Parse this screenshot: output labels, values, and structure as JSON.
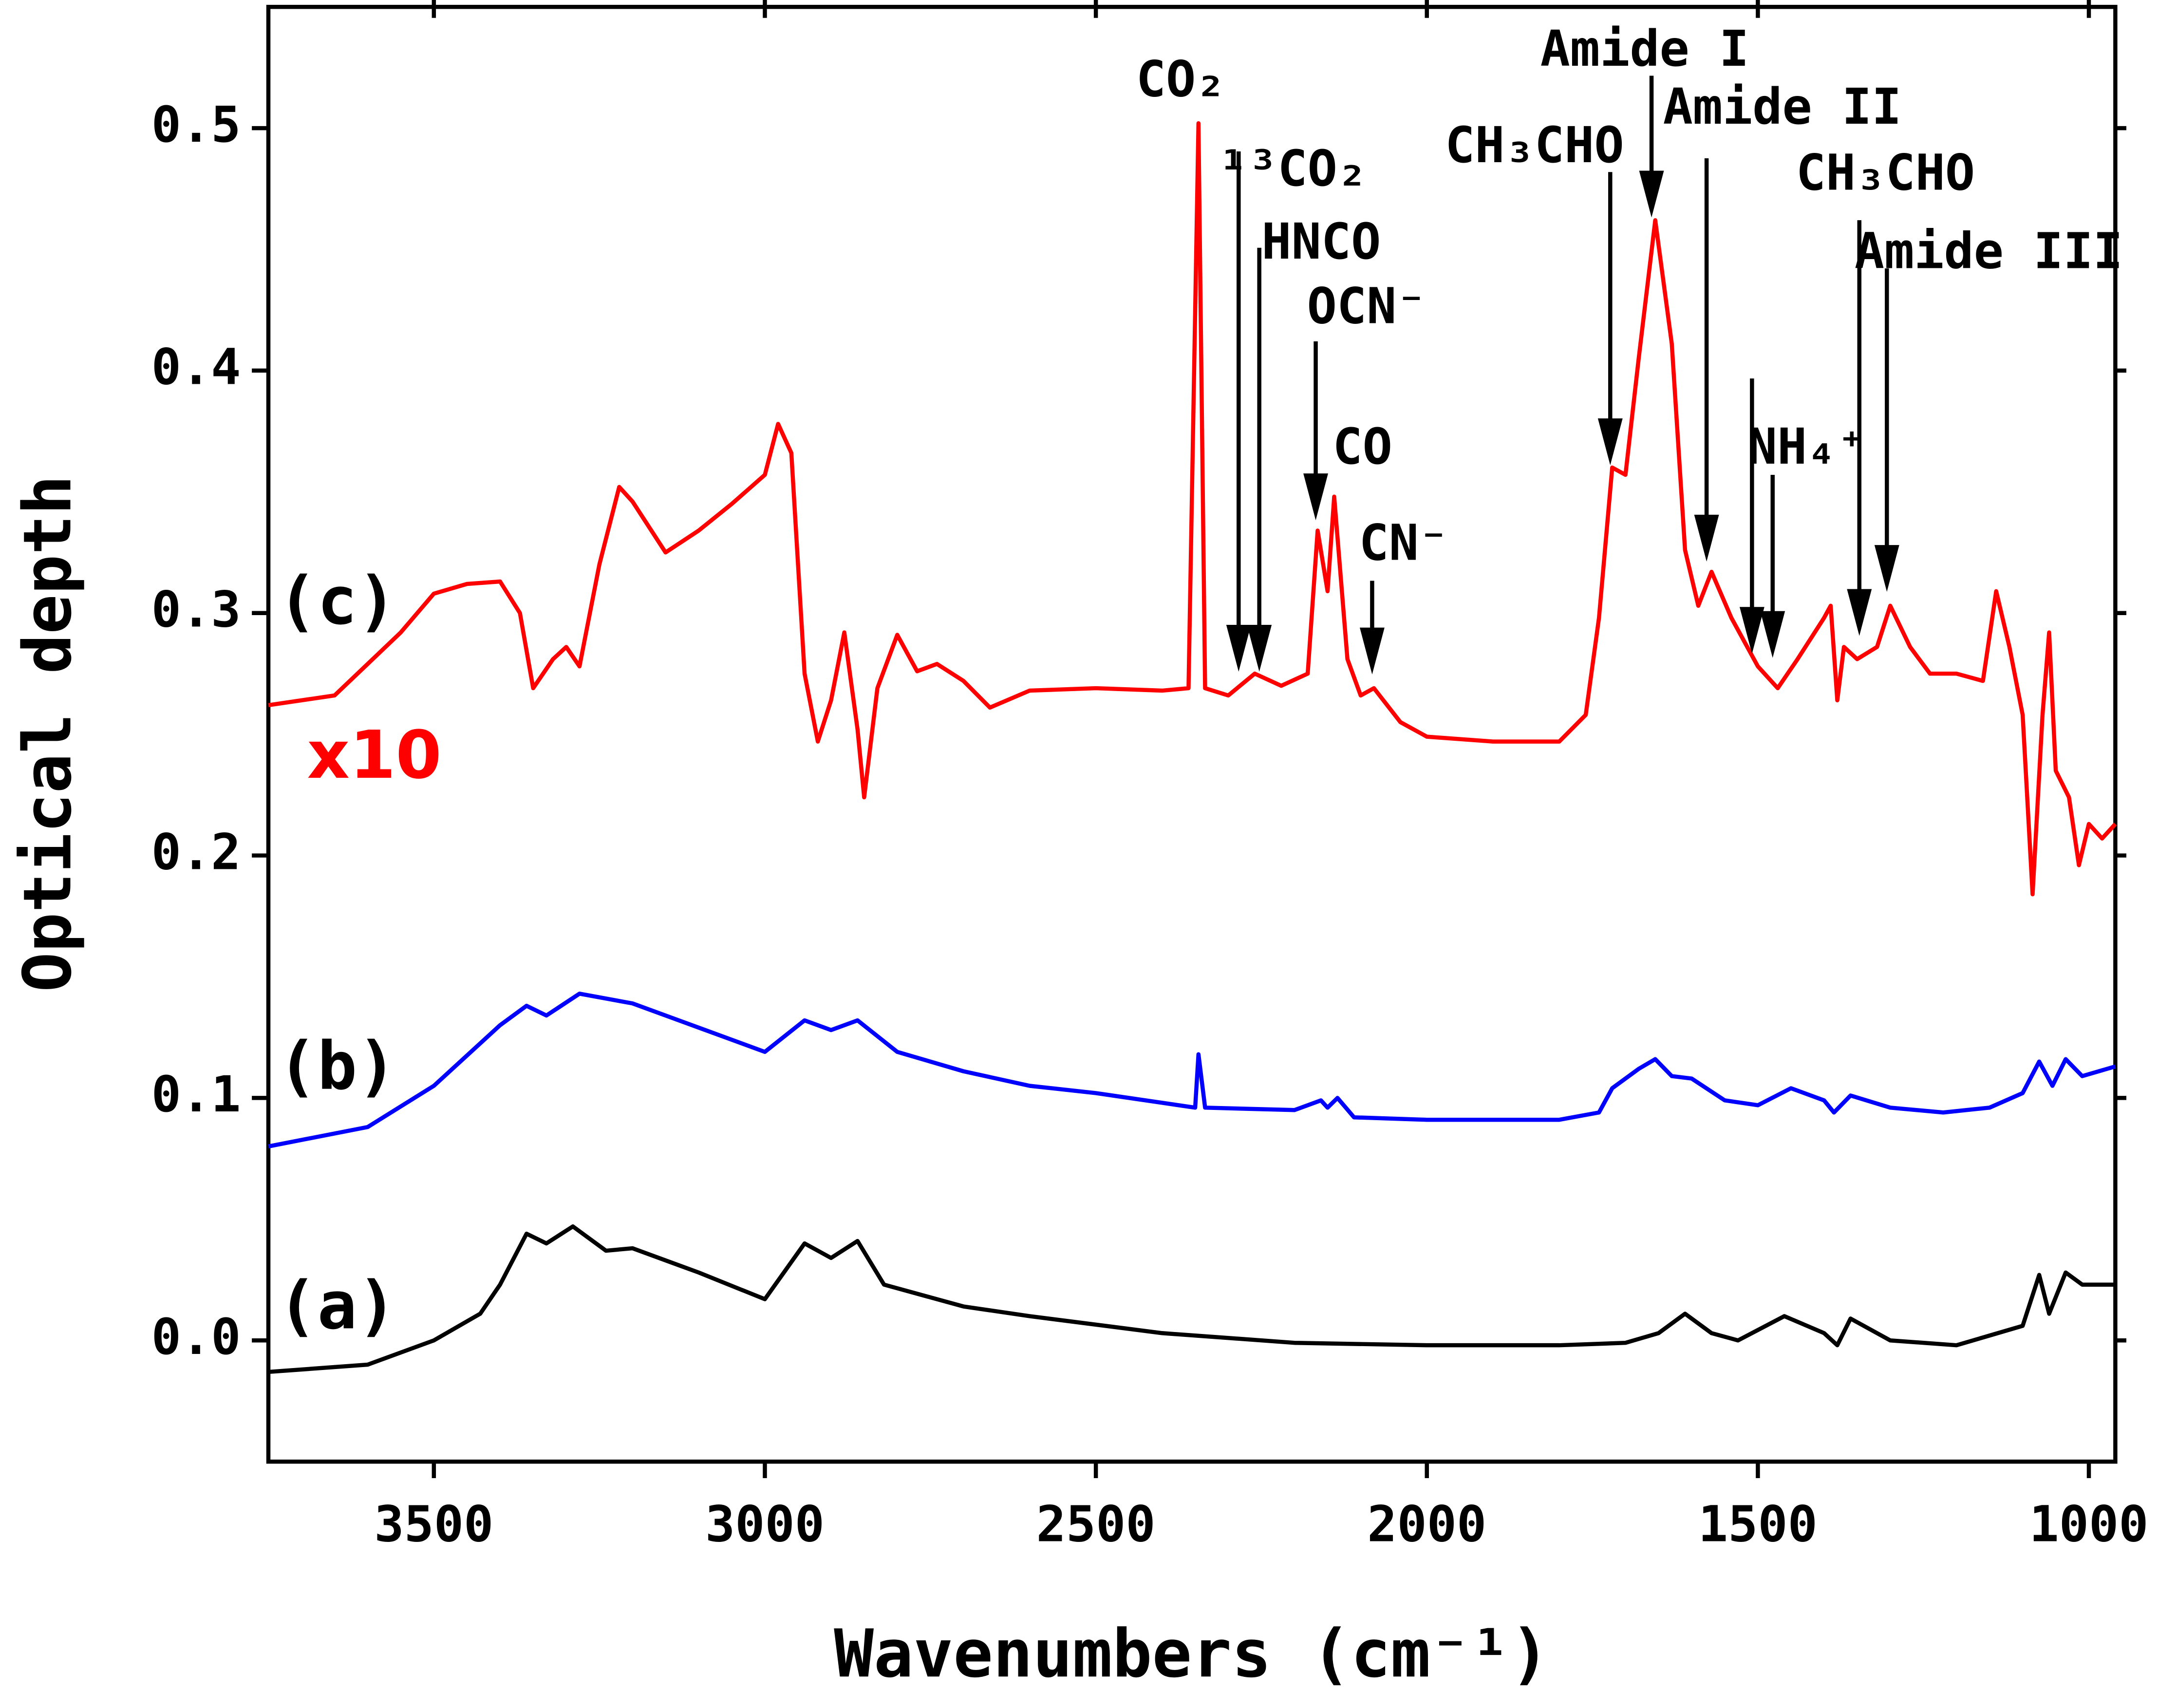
{
  "chart_data": {
    "type": "line",
    "xlabel": "Wavenumbers (cm⁻¹)",
    "ylabel": "Optical depth",
    "xlim": [
      3750,
      960
    ],
    "ylim": [
      -0.05,
      0.55
    ],
    "xticks": [
      3500,
      3000,
      2500,
      2000,
      1500,
      1000
    ],
    "yticks": [
      {
        "value": 0,
        "label": "0.0"
      },
      0.1,
      0.2,
      0.3,
      0.4,
      0.5
    ],
    "series": [
      {
        "name": "(a)",
        "color": "#000000",
        "x": [
          3750,
          3600,
          3500,
          3430,
          3400,
          3360,
          3330,
          3290,
          3240,
          3200,
          3100,
          3000,
          2940,
          2900,
          2860,
          2820,
          2700,
          2600,
          2400,
          2200,
          2000,
          1800,
          1700,
          1650,
          1610,
          1570,
          1530,
          1460,
          1400,
          1380,
          1360,
          1300,
          1200,
          1150,
          1100,
          1075,
          1060,
          1035,
          1010,
          960
        ],
        "values": [
          -0.013,
          -0.01,
          0.0,
          0.011,
          0.023,
          0.044,
          0.04,
          0.047,
          0.037,
          0.038,
          0.028,
          0.017,
          0.04,
          0.034,
          0.041,
          0.023,
          0.014,
          0.01,
          0.003,
          -0.001,
          -0.002,
          -0.002,
          -0.001,
          0.003,
          0.011,
          0.003,
          0.0,
          0.01,
          0.003,
          -0.002,
          0.009,
          0.0,
          -0.002,
          0.002,
          0.006,
          0.027,
          0.011,
          0.028,
          0.023,
          0.023
        ]
      },
      {
        "name": "(b)",
        "color": "#0000ff",
        "x": [
          3750,
          3600,
          3500,
          3400,
          3360,
          3330,
          3280,
          3200,
          3100,
          3000,
          2940,
          2900,
          2860,
          2800,
          2700,
          2600,
          2500,
          2400,
          2350,
          2345,
          2335,
          2200,
          2160,
          2150,
          2135,
          2110,
          2000,
          1800,
          1740,
          1720,
          1680,
          1655,
          1630,
          1600,
          1550,
          1500,
          1450,
          1400,
          1385,
          1360,
          1300,
          1220,
          1150,
          1100,
          1075,
          1055,
          1035,
          1010,
          960
        ],
        "values": [
          0.08,
          0.088,
          0.105,
          0.13,
          0.138,
          0.134,
          0.143,
          0.139,
          0.129,
          0.119,
          0.132,
          0.128,
          0.132,
          0.119,
          0.111,
          0.105,
          0.102,
          0.098,
          0.096,
          0.118,
          0.096,
          0.095,
          0.099,
          0.096,
          0.1,
          0.092,
          0.091,
          0.091,
          0.094,
          0.104,
          0.112,
          0.116,
          0.109,
          0.108,
          0.099,
          0.097,
          0.104,
          0.099,
          0.094,
          0.101,
          0.096,
          0.094,
          0.096,
          0.102,
          0.115,
          0.105,
          0.116,
          0.109,
          0.113
        ]
      },
      {
        "name": "(c)",
        "color": "#ff0000",
        "x": [
          3750,
          3650,
          3550,
          3500,
          3450,
          3400,
          3370,
          3350,
          3320,
          3300,
          3280,
          3250,
          3220,
          3200,
          3150,
          3100,
          3050,
          3000,
          2980,
          2960,
          2940,
          2920,
          2900,
          2880,
          2860,
          2850,
          2830,
          2800,
          2770,
          2740,
          2700,
          2660,
          2600,
          2500,
          2400,
          2360,
          2345,
          2335,
          2300,
          2260,
          2220,
          2180,
          2165,
          2150,
          2140,
          2120,
          2100,
          2080,
          2040,
          2000,
          1900,
          1800,
          1760,
          1740,
          1720,
          1700,
          1680,
          1655,
          1630,
          1610,
          1590,
          1570,
          1540,
          1500,
          1470,
          1440,
          1400,
          1390,
          1380,
          1370,
          1350,
          1320,
          1300,
          1270,
          1240,
          1200,
          1160,
          1140,
          1120,
          1100,
          1085,
          1070,
          1060,
          1050,
          1030,
          1015,
          1000,
          980,
          960
        ],
        "values": [
          0.262,
          0.266,
          0.292,
          0.308,
          0.312,
          0.313,
          0.3,
          0.269,
          0.281,
          0.286,
          0.278,
          0.32,
          0.352,
          0.346,
          0.325,
          0.334,
          0.345,
          0.357,
          0.378,
          0.366,
          0.275,
          0.247,
          0.264,
          0.292,
          0.252,
          0.224,
          0.269,
          0.291,
          0.276,
          0.279,
          0.272,
          0.261,
          0.268,
          0.269,
          0.268,
          0.269,
          0.502,
          0.269,
          0.266,
          0.275,
          0.27,
          0.275,
          0.334,
          0.309,
          0.348,
          0.281,
          0.266,
          0.269,
          0.255,
          0.249,
          0.247,
          0.247,
          0.258,
          0.298,
          0.36,
          0.357,
          0.405,
          0.462,
          0.411,
          0.326,
          0.303,
          0.317,
          0.298,
          0.278,
          0.269,
          0.281,
          0.298,
          0.303,
          0.264,
          0.286,
          0.281,
          0.286,
          0.303,
          0.286,
          0.275,
          0.275,
          0.272,
          0.309,
          0.286,
          0.258,
          0.184,
          0.258,
          0.292,
          0.235,
          0.224,
          0.196,
          0.213,
          0.207,
          0.213
        ]
      }
    ],
    "annotations": [
      "CO₂",
      "¹³CO₂",
      "HNCO",
      "OCN⁻",
      "CO",
      "CN⁻",
      "CH₃CHO",
      "Amide I",
      "Amide II",
      "NH₄⁺",
      "CH₃CHO",
      "Amide III",
      "x10"
    ]
  }
}
